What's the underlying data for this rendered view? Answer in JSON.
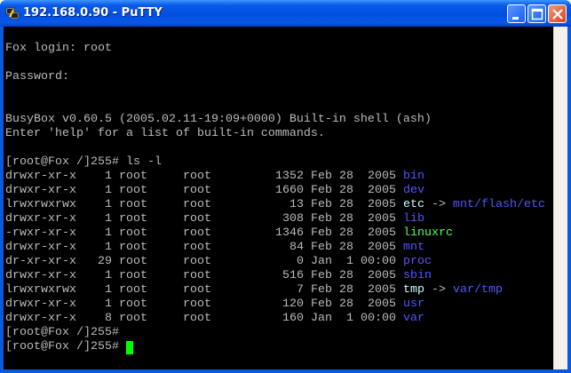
{
  "window": {
    "title": "192.168.0.90 - PuTTY"
  },
  "terminal": {
    "login": "Fox login: root",
    "password": "Password:",
    "banner": [
      "BusyBox v0.60.5 (2005.02.11-19:09+0000) Built-in shell (ash)",
      "Enter 'help' for a list of built-in commands."
    ],
    "command": "[root@Fox /]255# ls -l",
    "entries": [
      {
        "mode": "drwxr-xr-x",
        "links": 1,
        "owner": "root",
        "group": "root",
        "size": 1352,
        "date": "Feb 28  2005",
        "name": "bin",
        "color": "#5555ff"
      },
      {
        "mode": "drwxr-xr-x",
        "links": 1,
        "owner": "root",
        "group": "root",
        "size": 1660,
        "date": "Feb 28  2005",
        "name": "dev",
        "color": "#5555ff"
      },
      {
        "mode": "lrwxrwxrwx",
        "links": 1,
        "owner": "root",
        "group": "root",
        "size": 13,
        "date": "Feb 28  2005",
        "name": "etc",
        "color": "#c8ffff",
        "arrow": "->",
        "target": "mnt/flash/etc",
        "target_color": "#5555ff"
      },
      {
        "mode": "drwxr-xr-x",
        "links": 1,
        "owner": "root",
        "group": "root",
        "size": 308,
        "date": "Feb 28  2005",
        "name": "lib",
        "color": "#5555ff"
      },
      {
        "mode": "-rwxr-xr-x",
        "links": 1,
        "owner": "root",
        "group": "root",
        "size": 1346,
        "date": "Feb 28  2005",
        "name": "linuxrc",
        "color": "#55ff55"
      },
      {
        "mode": "drwxr-xr-x",
        "links": 1,
        "owner": "root",
        "group": "root",
        "size": 84,
        "date": "Feb 28  2005",
        "name": "mnt",
        "color": "#5555ff"
      },
      {
        "mode": "dr-xr-xr-x",
        "links": 29,
        "owner": "root",
        "group": "root",
        "size": 0,
        "date": "Jan  1 00:00",
        "name": "proc",
        "color": "#5555ff"
      },
      {
        "mode": "drwxr-xr-x",
        "links": 1,
        "owner": "root",
        "group": "root",
        "size": 516,
        "date": "Feb 28  2005",
        "name": "sbin",
        "color": "#5555ff"
      },
      {
        "mode": "lrwxrwxrwx",
        "links": 1,
        "owner": "root",
        "group": "root",
        "size": 7,
        "date": "Feb 28  2005",
        "name": "tmp",
        "color": "#c8ffff",
        "arrow": "->",
        "target": "var/tmp",
        "target_color": "#5555ff"
      },
      {
        "mode": "drwxr-xr-x",
        "links": 1,
        "owner": "root",
        "group": "root",
        "size": 120,
        "date": "Feb 28  2005",
        "name": "usr",
        "color": "#5555ff"
      },
      {
        "mode": "drwxr-xr-x",
        "links": 8,
        "owner": "root",
        "group": "root",
        "size": 160,
        "date": "Jan  1 00:00",
        "name": "var",
        "color": "#5555ff"
      }
    ],
    "prompts": [
      "[root@Fox /]255#",
      "[root@Fox /]255#"
    ]
  }
}
